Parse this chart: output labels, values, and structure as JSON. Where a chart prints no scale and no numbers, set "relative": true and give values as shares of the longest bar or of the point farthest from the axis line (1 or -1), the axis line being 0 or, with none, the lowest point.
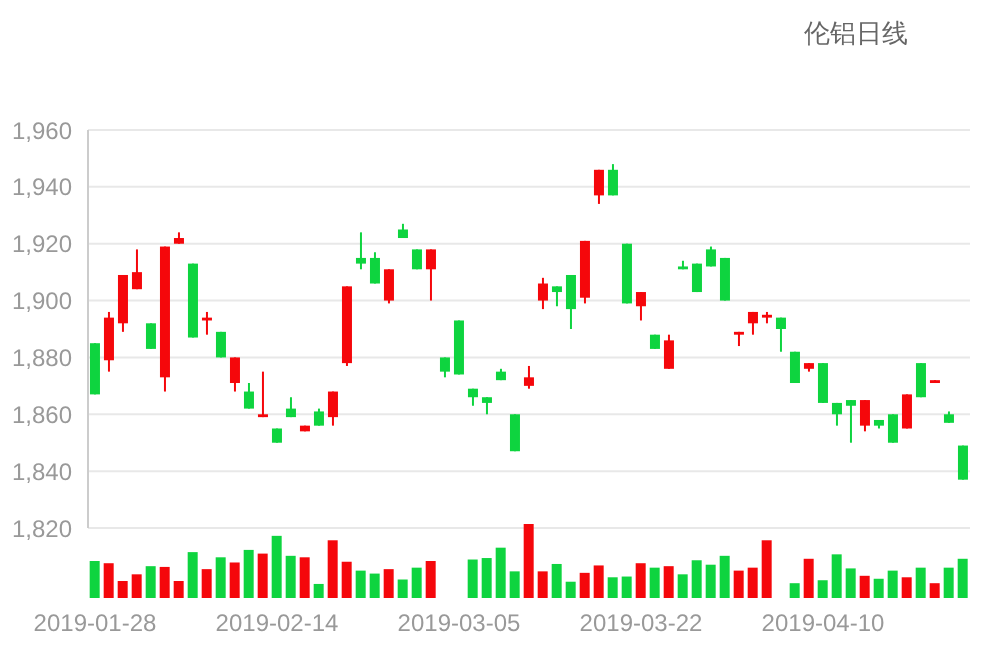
{
  "chart_data": [
    {
      "type": "candlestick",
      "title": "伦铝日线",
      "categories": [
        "2019-01-28",
        null,
        null,
        null,
        null,
        null,
        null,
        null,
        null,
        null,
        null,
        null,
        null,
        "2019-02-14",
        null,
        null,
        null,
        null,
        null,
        null,
        null,
        null,
        null,
        null,
        null,
        null,
        "2019-03-05",
        null,
        null,
        null,
        null,
        null,
        null,
        null,
        null,
        null,
        null,
        null,
        null,
        "2019-03-22",
        null,
        null,
        null,
        null,
        null,
        null,
        null,
        null,
        null,
        null,
        null,
        null,
        "2019-04-10",
        null,
        null,
        null,
        null,
        null,
        null,
        null,
        null,
        null,
        null
      ],
      "ohlc": [
        [
          1885,
          1885,
          1867,
          1867
        ],
        [
          1879,
          1896,
          1875,
          1894
        ],
        [
          1892,
          1909,
          1889,
          1909
        ],
        [
          1904,
          1918,
          1904,
          1910
        ],
        [
          1892,
          1892,
          1883,
          1883
        ],
        [
          1873,
          1919,
          1868,
          1919
        ],
        [
          1920,
          1924,
          1920,
          1922
        ],
        [
          1913,
          1913,
          1887,
          1887
        ],
        [
          1893,
          1896,
          1888,
          1894
        ],
        [
          1889,
          1889,
          1880,
          1880
        ],
        [
          1871,
          1880,
          1868,
          1880
        ],
        [
          1868,
          1871,
          1862,
          1862
        ],
        [
          1859,
          1875,
          1859,
          1860
        ],
        [
          1855,
          1855,
          1850,
          1850
        ],
        [
          1862,
          1866,
          1859,
          1859
        ],
        [
          1854,
          1856,
          1854,
          1856
        ],
        [
          1861,
          1862,
          1856,
          1856
        ],
        [
          1859,
          1868,
          1856,
          1868
        ],
        [
          1878,
          1905,
          1877,
          1905
        ],
        [
          1915,
          1924,
          1911,
          1913
        ],
        [
          1915,
          1917,
          1906,
          1906
        ],
        [
          1900,
          1911,
          1899,
          1911
        ],
        [
          1925,
          1927,
          1922,
          1922
        ],
        [
          1918,
          1918,
          1911,
          1911
        ],
        [
          1911,
          1918,
          1900,
          1918
        ],
        [
          1880,
          1880,
          1873,
          1875
        ],
        [
          1893,
          1893,
          1874,
          1874
        ],
        [
          1869,
          1869,
          1863,
          1866
        ],
        [
          1866,
          1866,
          1860,
          1864
        ],
        [
          1875,
          1876,
          1872,
          1872
        ],
        [
          1860,
          1860,
          1847,
          1847
        ],
        [
          1870,
          1877,
          1869,
          1873
        ],
        [
          1900,
          1908,
          1897,
          1906
        ],
        [
          1905,
          1905,
          1898,
          1903
        ],
        [
          1909,
          1909,
          1890,
          1897
        ],
        [
          1901,
          1921,
          1899,
          1921
        ],
        [
          1937,
          1946,
          1934,
          1946
        ],
        [
          1946,
          1948,
          1937,
          1937
        ],
        [
          1920,
          1920,
          1899,
          1899
        ],
        [
          1898,
          1903,
          1893,
          1903
        ],
        [
          1888,
          1888,
          1883,
          1883
        ],
        [
          1876,
          1888,
          1876,
          1886
        ],
        [
          1912,
          1914,
          1911,
          1911
        ],
        [
          1913,
          1913,
          1903,
          1903
        ],
        [
          1918,
          1919,
          1912,
          1912
        ],
        [
          1915,
          1915,
          1900,
          1900
        ],
        [
          1888,
          1889,
          1884,
          1889
        ],
        [
          1892,
          1896,
          1888,
          1896
        ],
        [
          1894,
          1896,
          1892,
          1895
        ],
        [
          1894,
          1894,
          1882,
          1890
        ],
        [
          1882,
          1882,
          1871,
          1871
        ],
        [
          1876,
          1878,
          1875,
          1878
        ],
        [
          1878,
          1878,
          1864,
          1864
        ],
        [
          1864,
          1864,
          1856,
          1860
        ],
        [
          1865,
          1865,
          1850,
          1863
        ],
        [
          1856,
          1865,
          1854,
          1865
        ],
        [
          1858,
          1858,
          1855,
          1856
        ],
        [
          1860,
          1860,
          1850,
          1850
        ],
        [
          1855,
          1867,
          1855,
          1867
        ],
        [
          1878,
          1878,
          1866,
          1866
        ],
        [
          1871,
          1872,
          1871,
          1872
        ],
        [
          1860,
          1861,
          1857,
          1857
        ],
        [
          1849,
          1849,
          1837,
          1837
        ]
      ],
      "colors": [
        "#0ed43f",
        "#f5070b",
        "#f5070b",
        "#f5070b",
        "#0ed43f",
        "#f5070b",
        "#f5070b",
        "#0ed43f",
        "#f5070b",
        "#0ed43f",
        "#f5070b",
        "#0ed43f",
        "#f5070b",
        "#0ed43f",
        "#0ed43f",
        "#f5070b",
        "#0ed43f",
        "#f5070b",
        "#f5070b",
        "#0ed43f",
        "#0ed43f",
        "#f5070b",
        "#0ed43f",
        "#0ed43f",
        "#f5070b",
        "#0ed43f",
        "#0ed43f",
        "#0ed43f",
        "#0ed43f",
        "#0ed43f",
        "#0ed43f",
        "#f5070b",
        "#f5070b",
        "#0ed43f",
        "#0ed43f",
        "#f5070b",
        "#f5070b",
        "#0ed43f",
        "#0ed43f",
        "#f5070b",
        "#0ed43f",
        "#f5070b",
        "#0ed43f",
        "#0ed43f",
        "#0ed43f",
        "#0ed43f",
        "#f5070b",
        "#f5070b",
        "#f5070b",
        "#0ed43f",
        "#0ed43f",
        "#f5070b",
        "#0ed43f",
        "#0ed43f",
        "#0ed43f",
        "#f5070b",
        "#0ed43f",
        "#0ed43f",
        "#f5070b",
        "#0ed43f",
        "#f5070b",
        "#0ed43f",
        "#0ed43f"
      ],
      "ylim": [
        1820,
        1960
      ],
      "yticks": [
        {
          "value": 1820,
          "label": "1,820"
        },
        {
          "value": 1840,
          "label": "1,840"
        },
        {
          "value": 1860,
          "label": "1,860"
        },
        {
          "value": 1880,
          "label": "1,880"
        },
        {
          "value": 1900,
          "label": "1,900"
        },
        {
          "value": 1920,
          "label": "1,920"
        },
        {
          "value": 1940,
          "label": "1,940"
        },
        {
          "value": 1960,
          "label": "1,960"
        }
      ],
      "grid": "y",
      "tick_labels": "y"
    },
    {
      "type": "bar",
      "relative": true,
      "categories": [
        "2019-01-28",
        null,
        null,
        null,
        null,
        null,
        null,
        null,
        null,
        null,
        null,
        null,
        null,
        "2019-02-14",
        null,
        null,
        null,
        null,
        null,
        null,
        null,
        null,
        null,
        null,
        null,
        null,
        "2019-03-05",
        null,
        null,
        null,
        null,
        null,
        null,
        null,
        null,
        null,
        null,
        null,
        null,
        "2019-03-22",
        null,
        null,
        null,
        null,
        null,
        null,
        null,
        null,
        null,
        null,
        null,
        null,
        "2019-04-10",
        null,
        null,
        null,
        null,
        null,
        null,
        null,
        null,
        null,
        null
      ],
      "values": [
        0.5,
        0.47,
        0.23,
        0.32,
        0.43,
        0.42,
        0.23,
        0.62,
        0.39,
        0.55,
        0.48,
        0.65,
        0.6,
        0.84,
        0.57,
        0.55,
        0.19,
        0.78,
        0.49,
        0.37,
        0.33,
        0.39,
        0.25,
        0.41,
        0.5,
        null,
        null,
        0.52,
        0.54,
        0.68,
        0.36,
        1,
        0.36,
        0.46,
        0.22,
        0.34,
        0.44,
        0.28,
        0.29,
        0.47,
        0.41,
        0.43,
        0.32,
        0.51,
        0.45,
        0.57,
        0.37,
        0.41,
        0.78,
        null,
        0.2,
        0.53,
        0.24,
        0.59,
        0.4,
        0.3,
        0.26,
        0.37,
        0.28,
        0.41,
        0.2,
        0.41,
        0.53
      ],
      "colors": [
        "#0ed43f",
        "#f5070b",
        "#f5070b",
        "#f5070b",
        "#0ed43f",
        "#f5070b",
        "#f5070b",
        "#0ed43f",
        "#f5070b",
        "#0ed43f",
        "#f5070b",
        "#0ed43f",
        "#f5070b",
        "#0ed43f",
        "#0ed43f",
        "#f5070b",
        "#0ed43f",
        "#f5070b",
        "#f5070b",
        "#0ed43f",
        "#0ed43f",
        "#f5070b",
        "#0ed43f",
        "#0ed43f",
        "#f5070b",
        "#0ed43f",
        "#0ed43f",
        "#0ed43f",
        "#0ed43f",
        "#0ed43f",
        "#0ed43f",
        "#f5070b",
        "#f5070b",
        "#0ed43f",
        "#0ed43f",
        "#f5070b",
        "#f5070b",
        "#0ed43f",
        "#0ed43f",
        "#f5070b",
        "#0ed43f",
        "#f5070b",
        "#0ed43f",
        "#0ed43f",
        "#0ed43f",
        "#0ed43f",
        "#f5070b",
        "#f5070b",
        "#f5070b",
        "#0ed43f",
        "#0ed43f",
        "#f5070b",
        "#0ed43f",
        "#0ed43f",
        "#0ed43f",
        "#f5070b",
        "#0ed43f",
        "#0ed43f",
        "#f5070b",
        "#0ed43f",
        "#f5070b",
        "#0ed43f",
        "#0ed43f"
      ],
      "tick_labels": "x"
    }
  ]
}
